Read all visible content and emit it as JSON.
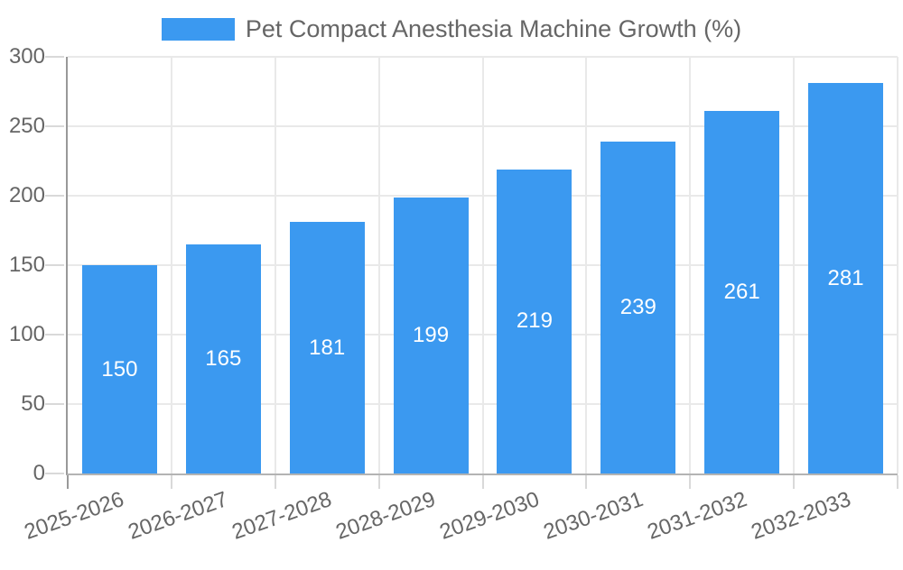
{
  "chart_data": {
    "type": "bar",
    "title": "Pet Compact Anesthesia Machine Growth (%)",
    "categories": [
      "2025-2026",
      "2026-2027",
      "2027-2028",
      "2028-2029",
      "2029-2030",
      "2030-2031",
      "2031-2032",
      "2032-2033"
    ],
    "values": [
      150,
      165,
      181,
      199,
      219,
      239,
      261,
      281
    ],
    "xlabel": "",
    "ylabel": "",
    "ylim": [
      0,
      300
    ],
    "yticks": [
      0,
      50,
      100,
      150,
      200,
      250,
      300
    ],
    "grid": true,
    "legend_position": "top",
    "value_label_position": "inside-center",
    "x_tick_rotation_deg": -19.5,
    "colors": {
      "bar": "#3B99F0",
      "axis_text": "#666666",
      "legend_text": "#666666",
      "gridline": "#E9E9E9",
      "tick": "#D9D9D9",
      "value_label": "#FFFFFF",
      "background": "#FFFFFF"
    }
  }
}
